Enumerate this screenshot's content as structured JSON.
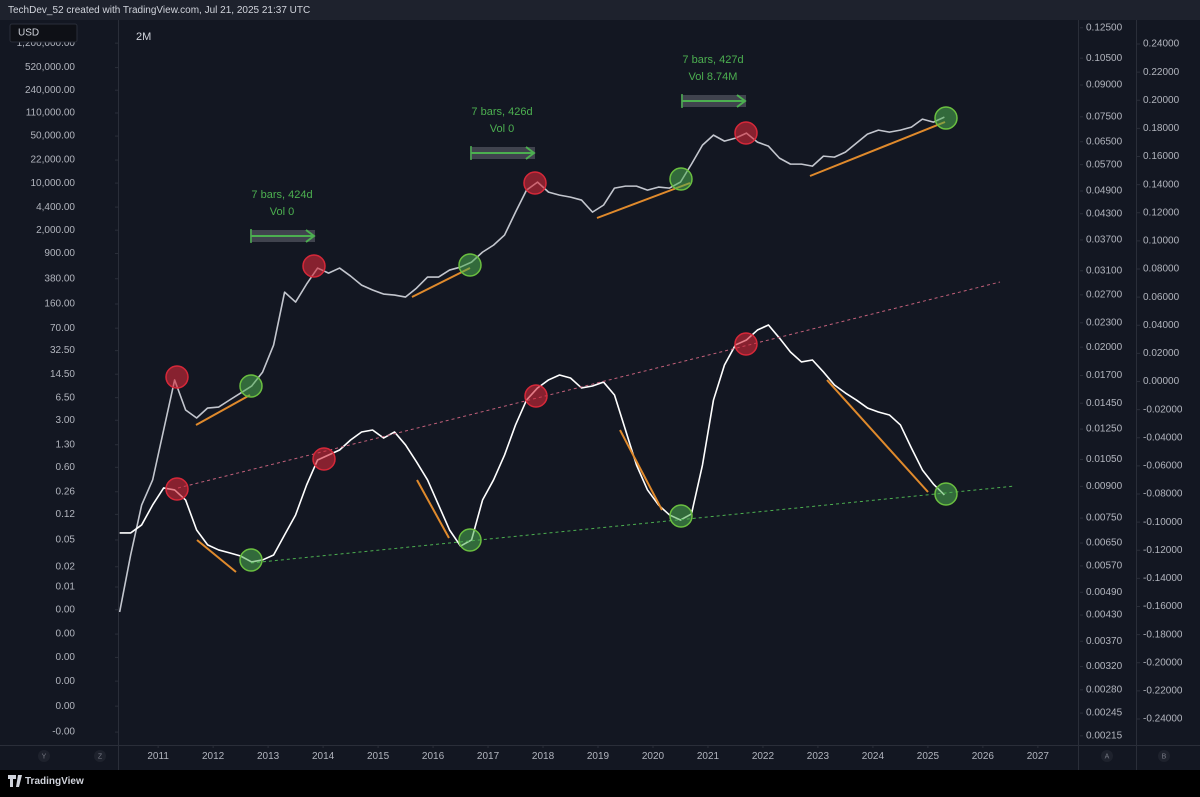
{
  "header": {
    "credit": "TechDev_52 created with TradingView.com, Jul 21, 2025 21:37 UTC",
    "brand": "TradingView"
  },
  "chart_data": {
    "type": "line",
    "currency": "USD",
    "timeframe": "2M",
    "axis_buttons": [
      "Y",
      "Z",
      "A",
      "B"
    ],
    "x": [
      2010.3,
      2010.5,
      2010.7,
      2010.9,
      2011.1,
      2011.3,
      2011.5,
      2011.7,
      2011.9,
      2012.1,
      2012.3,
      2012.5,
      2012.7,
      2012.9,
      2013.1,
      2013.3,
      2013.5,
      2013.7,
      2013.9,
      2014.1,
      2014.3,
      2014.5,
      2014.7,
      2014.9,
      2015.1,
      2015.3,
      2015.5,
      2015.7,
      2015.9,
      2016.1,
      2016.3,
      2016.5,
      2016.7,
      2016.9,
      2017.1,
      2017.3,
      2017.5,
      2017.7,
      2017.9,
      2018.1,
      2018.3,
      2018.5,
      2018.7,
      2018.9,
      2019.1,
      2019.3,
      2019.5,
      2019.7,
      2019.9,
      2020.1,
      2020.3,
      2020.5,
      2020.7,
      2020.9,
      2021.1,
      2021.3,
      2021.5,
      2021.7,
      2021.9,
      2022.1,
      2022.3,
      2022.5,
      2022.7,
      2022.9,
      2023.1,
      2023.3,
      2023.5,
      2023.7,
      2023.9,
      2024.1,
      2024.3,
      2024.5,
      2024.7,
      2024.9,
      2025.1,
      2025.3
    ],
    "xlim": [
      2010.27,
      2027.73
    ],
    "xticks": [
      2011,
      2012,
      2013,
      2014,
      2015,
      2016,
      2017,
      2018,
      2019,
      2020,
      2021,
      2022,
      2023,
      2024,
      2025,
      2026,
      2027
    ],
    "log_scale": true,
    "ylim": [
      4.5e-05,
      5250000
    ],
    "yticks": [
      {
        "value": 1200000,
        "label": "1,200,000.00"
      },
      {
        "value": 520000,
        "label": "520,000.00"
      },
      {
        "value": 240000,
        "label": "240,000.00"
      },
      {
        "value": 110000,
        "label": "110,000.00"
      },
      {
        "value": 50000,
        "label": "50,000.00"
      },
      {
        "value": 22000,
        "label": "22,000.00"
      },
      {
        "value": 10000,
        "label": "10,000.00"
      },
      {
        "value": 4400,
        "label": "4,400.00"
      },
      {
        "value": 2000,
        "label": "2,000.00"
      },
      {
        "value": 900,
        "label": "900.00"
      },
      {
        "value": 380,
        "label": "380.00"
      },
      {
        "value": 160,
        "label": "160.00"
      },
      {
        "value": 70,
        "label": "70.00"
      },
      {
        "value": 32.5,
        "label": "32.50"
      },
      {
        "value": 14.5,
        "label": "14.50"
      },
      {
        "value": 6.5,
        "label": "6.50"
      },
      {
        "value": 3,
        "label": "3.00"
      },
      {
        "value": 1.3,
        "label": "1.30"
      },
      {
        "value": 0.6,
        "label": "0.60"
      },
      {
        "value": 0.26,
        "label": "0.26"
      },
      {
        "value": 0.12,
        "label": "0.12"
      },
      {
        "value": 0.05,
        "label": "0.05"
      },
      {
        "value": 0.02,
        "label": "0.02"
      },
      {
        "value": 0.01,
        "label": "0.01"
      },
      {
        "value": 0.0046,
        "label": "0.00"
      },
      {
        "value": 0.002,
        "label": "0.00"
      },
      {
        "value": 0.0009,
        "label": "0.00"
      },
      {
        "value": 0.0004,
        "label": "0.00"
      },
      {
        "value": 0.00017,
        "label": "0.00"
      },
      {
        "value": 7e-05,
        "label": "-0.00"
      }
    ],
    "y3_log_scale": true,
    "y3lim": [
      0.00204,
      0.1466
    ],
    "y3ticks": [
      {
        "value": 0.125,
        "label": "0.12500"
      },
      {
        "value": 0.105,
        "label": "0.10500"
      },
      {
        "value": 0.09,
        "label": "0.09000"
      },
      {
        "value": 0.075,
        "label": "0.07500"
      },
      {
        "value": 0.065,
        "label": "0.06500"
      },
      {
        "value": 0.057,
        "label": "0.05700"
      },
      {
        "value": 0.049,
        "label": "0.04900"
      },
      {
        "value": 0.043,
        "label": "0.04300"
      },
      {
        "value": 0.037,
        "label": "0.03700"
      },
      {
        "value": 0.031,
        "label": "0.03100"
      },
      {
        "value": 0.027,
        "label": "0.02700"
      },
      {
        "value": 0.023,
        "label": "0.02300"
      },
      {
        "value": 0.02,
        "label": "0.02000"
      },
      {
        "value": 0.017,
        "label": "0.01700"
      },
      {
        "value": 0.0145,
        "label": "0.01450"
      },
      {
        "value": 0.0125,
        "label": "0.01250"
      },
      {
        "value": 0.0105,
        "label": "0.01050"
      },
      {
        "value": 0.009,
        "label": "0.00900"
      },
      {
        "value": 0.0075,
        "label": "0.00750"
      },
      {
        "value": 0.0065,
        "label": "0.00650"
      },
      {
        "value": 0.0057,
        "label": "0.00570"
      },
      {
        "value": 0.0049,
        "label": "0.00490"
      },
      {
        "value": 0.0043,
        "label": "0.00430"
      },
      {
        "value": 0.0037,
        "label": "0.00370"
      },
      {
        "value": 0.0032,
        "label": "0.00320"
      },
      {
        "value": 0.0028,
        "label": "0.00280"
      },
      {
        "value": 0.00245,
        "label": "0.00245"
      },
      {
        "value": 0.00215,
        "label": "0.00215"
      }
    ],
    "y2lim": [
      -0.2585,
      0.2713
    ],
    "y2ticks": [
      {
        "value": 0.24,
        "label": "0.24000"
      },
      {
        "value": 0.22,
        "label": "0.22000"
      },
      {
        "value": 0.2,
        "label": "0.20000"
      },
      {
        "value": 0.18,
        "label": "0.18000"
      },
      {
        "value": 0.16,
        "label": "0.16000"
      },
      {
        "value": 0.14,
        "label": "0.14000"
      },
      {
        "value": 0.12,
        "label": "0.12000"
      },
      {
        "value": 0.1,
        "label": "0.10000"
      },
      {
        "value": 0.08,
        "label": "0.08000"
      },
      {
        "value": 0.06,
        "label": "0.06000"
      },
      {
        "value": 0.04,
        "label": "0.04000"
      },
      {
        "value": 0.02,
        "label": "0.02000"
      },
      {
        "value": 0,
        "label": "0.00000"
      },
      {
        "value": -0.02,
        "label": "-0.02000"
      },
      {
        "value": -0.04,
        "label": "-0.04000"
      },
      {
        "value": -0.06,
        "label": "-0.06000"
      },
      {
        "value": -0.08,
        "label": "-0.08000"
      },
      {
        "value": -0.1,
        "label": "-0.10000"
      },
      {
        "value": -0.12,
        "label": "-0.12000"
      },
      {
        "value": -0.14,
        "label": "-0.14000"
      },
      {
        "value": -0.16,
        "label": "-0.16000"
      },
      {
        "value": -0.18,
        "label": "-0.18000"
      },
      {
        "value": -0.2,
        "label": "-0.20000"
      },
      {
        "value": -0.22,
        "label": "-0.22000"
      },
      {
        "value": -0.24,
        "label": "-0.24000"
      }
    ],
    "series": [
      {
        "color": "#c3c6ce",
        "axis": "y",
        "values": [
          0.00426,
          0.0299,
          0.165,
          0.389,
          2.15,
          11.9,
          4.26,
          3.24,
          4.56,
          4.72,
          6.0,
          7.6,
          9.66,
          15.6,
          39.3,
          240,
          171,
          316,
          547,
          460,
          547,
          416,
          305,
          258,
          225,
          217,
          203,
          276,
          402,
          402,
          511,
          566,
          671,
          944,
          1199,
          1690,
          3707,
          7870,
          10350,
          7350,
          6637,
          6194,
          5598,
          3707,
          4710,
          8430,
          9020,
          9020,
          7870,
          8730,
          8430,
          10350,
          19140,
          36650,
          51640,
          42070,
          46560,
          55300,
          40640,
          35400,
          23500,
          19140,
          19140,
          17870,
          25180,
          24330,
          28840,
          39260,
          53460,
          61240,
          57150,
          61240,
          67920,
          89130,
          80540,
          95500
        ]
      },
      {
        "color": "#ffffff",
        "axis": "y2",
        "values": [
          -0.1077,
          -0.1077,
          -0.102,
          -0.0878,
          -0.0757,
          -0.0771,
          -0.0843,
          -0.1056,
          -0.1162,
          -0.1198,
          -0.1219,
          -0.1241,
          -0.1283,
          -0.1269,
          -0.1234,
          -0.1091,
          -0.0949,
          -0.0736,
          -0.0558,
          -0.0523,
          -0.0487,
          -0.0416,
          -0.0359,
          -0.0345,
          -0.0402,
          -0.0359,
          -0.0451,
          -0.0572,
          -0.07,
          -0.0878,
          -0.1056,
          -0.117,
          -0.1127,
          -0.0843,
          -0.07,
          -0.0523,
          -0.0309,
          -0.0132,
          -0.0046,
          0.0011,
          0.0046,
          0.0025,
          -0.0046,
          -0.0032,
          -0.0004,
          -0.0096,
          -0.0345,
          -0.0594,
          -0.0771,
          -0.0878,
          -0.0949,
          -0.0985,
          -0.0942,
          -0.0594,
          -0.0132,
          0.0117,
          0.026,
          0.0295,
          0.0366,
          0.0402,
          0.0309,
          0.021,
          0.0139,
          0.0153,
          0.0068,
          -0.0025,
          -0.0082,
          -0.0132,
          -0.0188,
          -0.0217,
          -0.0238,
          -0.0309,
          -0.0473,
          -0.0629,
          -0.0729,
          -0.0807
        ]
      }
    ],
    "annotations": [
      {
        "label": "7 bars, 424d",
        "volume": "Vol 0"
      },
      {
        "label": "7 bars, 426d",
        "volume": "Vol 0"
      },
      {
        "label": "7 bars, 427d",
        "volume": "Vol 8.74M"
      }
    ]
  }
}
